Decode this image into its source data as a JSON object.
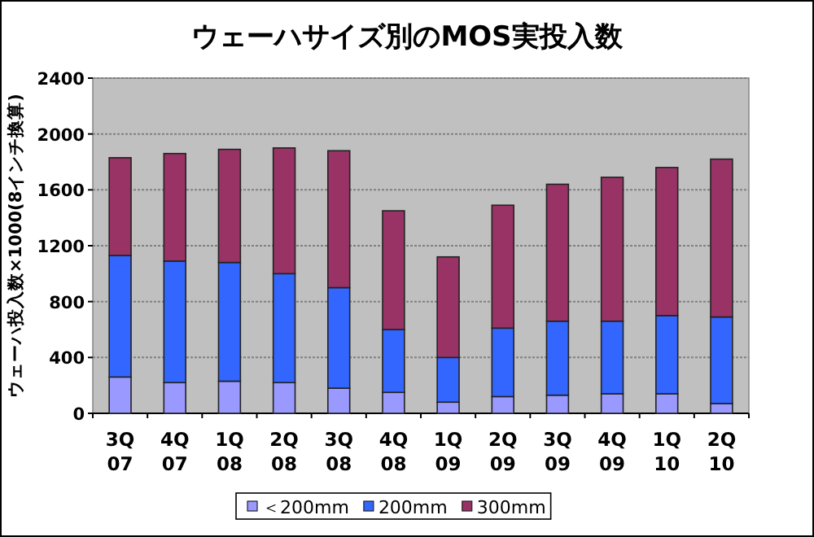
{
  "chart_data": {
    "type": "bar",
    "stacked": true,
    "title": "ウェーハサイズ別のMOS実投入数",
    "ylabel": "ウェーハ投入数×1000(8インチ換算)",
    "categories": [
      "3Q 07",
      "4Q 07",
      "1Q 08",
      "2Q 08",
      "3Q 08",
      "4Q 08",
      "1Q 09",
      "2Q 09",
      "3Q 09",
      "4Q 09",
      "1Q 10",
      "2Q 10"
    ],
    "series": [
      {
        "name": "＜200mm",
        "color": "#9999ff",
        "values": [
          260,
          220,
          230,
          220,
          180,
          150,
          80,
          120,
          130,
          140,
          140,
          70
        ]
      },
      {
        "name": "200mm",
        "color": "#3366ff",
        "values": [
          870,
          870,
          850,
          780,
          720,
          450,
          320,
          490,
          530,
          520,
          560,
          620
        ]
      },
      {
        "name": "300mm",
        "color": "#993366",
        "values": [
          700,
          770,
          810,
          900,
          980,
          850,
          720,
          880,
          980,
          1030,
          1060,
          1130
        ]
      }
    ],
    "ylim": [
      0,
      2400
    ],
    "yticks": [
      0,
      400,
      800,
      1200,
      1600,
      2000,
      2400
    ],
    "grid": "y",
    "legend": "bottom"
  }
}
